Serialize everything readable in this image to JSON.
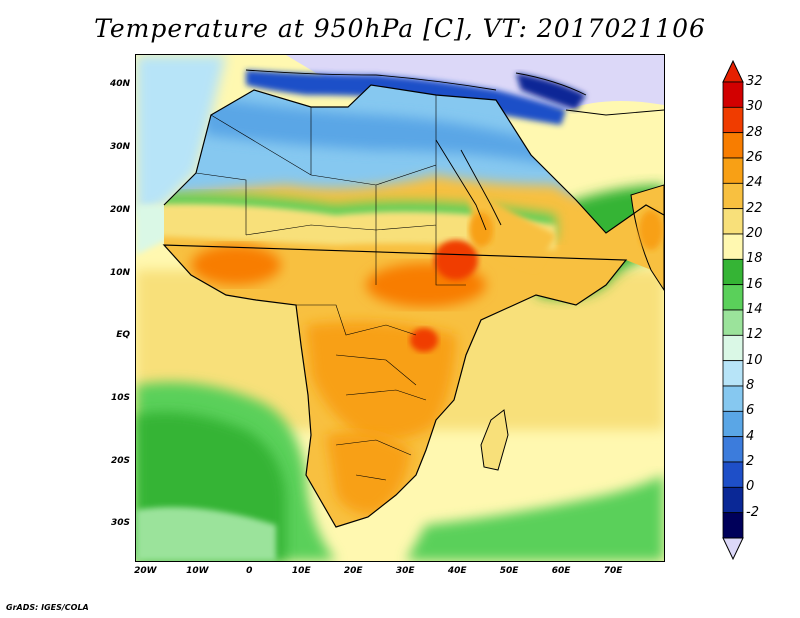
{
  "title": "Temperature at 950hPa [C], VT: 2017021106",
  "credit": "GrADS: IGES/COLA",
  "map": {
    "lon_range": [
      -22,
      80
    ],
    "lat_range": [
      -36,
      45
    ],
    "lat_labels": [
      {
        "lat": 40,
        "text": "40N"
      },
      {
        "lat": 30,
        "text": "30N"
      },
      {
        "lat": 20,
        "text": "20N"
      },
      {
        "lat": 10,
        "text": "10N"
      },
      {
        "lat": 0,
        "text": "EQ"
      },
      {
        "lat": -10,
        "text": "10S"
      },
      {
        "lat": -20,
        "text": "20S"
      },
      {
        "lat": -30,
        "text": "30S"
      }
    ],
    "lon_labels": [
      {
        "lon": -20,
        "text": "20W"
      },
      {
        "lon": -10,
        "text": "10W"
      },
      {
        "lon": 0,
        "text": "0"
      },
      {
        "lon": 10,
        "text": "10E"
      },
      {
        "lon": 20,
        "text": "20E"
      },
      {
        "lon": 30,
        "text": "30E"
      },
      {
        "lon": 40,
        "text": "40E"
      },
      {
        "lon": 50,
        "text": "50E"
      },
      {
        "lon": 60,
        "text": "60E"
      },
      {
        "lon": 70,
        "text": "70E"
      }
    ]
  },
  "colorbar": {
    "labels": [
      "32",
      "30",
      "28",
      "26",
      "24",
      "22",
      "20",
      "18",
      "16",
      "14",
      "12",
      "10",
      "8",
      "6",
      "4",
      "2",
      "0",
      "-2"
    ],
    "colors": [
      "#d20000",
      "#f03c00",
      "#f87d00",
      "#f8a015",
      "#f8c040",
      "#f8e07a",
      "#fff8b0",
      "#35b435",
      "#5ad05a",
      "#9be39b",
      "#daf8e6",
      "#b7e4f8",
      "#86c8f0",
      "#5aa6e6",
      "#3c7cdc",
      "#1e4fc8",
      "#0a2896",
      "#00005a"
    ],
    "top_arrow_color": "#e52000",
    "bottom_arrow_color": "#dcd8f8"
  },
  "palette": {
    "ocean_warm": "#fff8b0",
    "ocean_mid": "#f8e07a",
    "ocean_cool": "#35b435",
    "land_hot": "#f87d00",
    "land_warm": "#f8c040",
    "land_cool": "#86c8f0",
    "europe": "#dcd8f8",
    "coast": "#000000"
  }
}
